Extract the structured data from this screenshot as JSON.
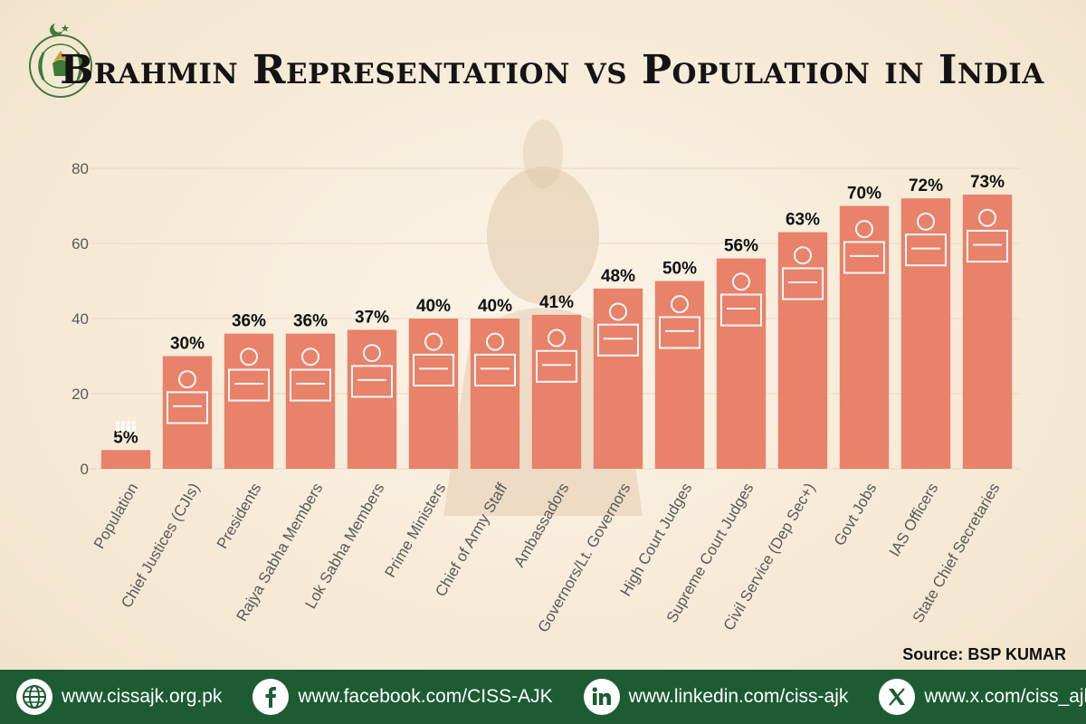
{
  "title": "Brahmin Representation vs Population in India",
  "source": "Source: BSP KUMAR",
  "colors": {
    "bar": "#e8826a",
    "footer": "#1d5c33",
    "accent": "#1d5c33"
  },
  "footer": {
    "links": [
      {
        "icon": "globe-icon",
        "text": "www.cissajk.org.pk"
      },
      {
        "icon": "facebook-icon",
        "text": "www.facebook.com/CISS-AJK"
      },
      {
        "icon": "linkedin-icon",
        "text": "www.linkedin.com/ciss-ajk"
      },
      {
        "icon": "x-icon",
        "text": "www.x.com/ciss_ajk"
      }
    ]
  },
  "chart_data": {
    "type": "bar",
    "title": "Brahmin Representation vs Population in India",
    "xlabel": "",
    "ylabel": "",
    "ylim": [
      0,
      80
    ],
    "yticks": [
      0,
      20,
      40,
      60,
      80
    ],
    "grid": true,
    "categories": [
      "Population",
      "Chief Justices (CJIs)",
      "Presidents",
      "Rajya Sabha Members",
      "Lok Sabha Members",
      "Prime Ministers",
      "Chief of Army Staff",
      "Ambassadors",
      "Governors/Lt. Governors",
      "High Court Judges",
      "Supreme Court Judges",
      "Civil Service (Dep Sec+)",
      "Govt Jobs",
      "IAS Officers",
      "State Chief Secretaries"
    ],
    "values": [
      5,
      30,
      36,
      36,
      37,
      40,
      40,
      41,
      48,
      50,
      56,
      63,
      70,
      72,
      73
    ],
    "data_labels": [
      "5%",
      "30%",
      "36%",
      "36%",
      "37%",
      "40%",
      "40%",
      "41%",
      "48%",
      "50%",
      "56%",
      "63%",
      "70%",
      "72%",
      "73%"
    ]
  }
}
